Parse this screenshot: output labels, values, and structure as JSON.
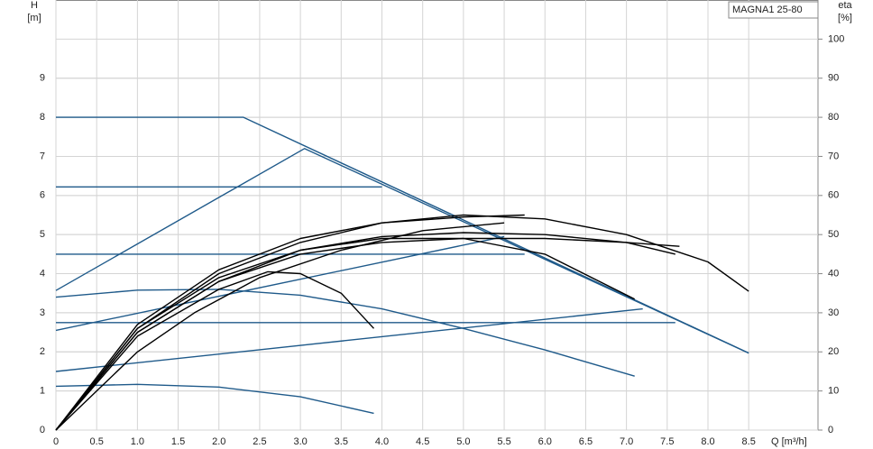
{
  "chart_data": {
    "type": "line",
    "legend_box": "MAGNA1 25-80",
    "y_label": "H",
    "y_unit": "[m]",
    "y2_label": "eta",
    "y2_unit": "[%]",
    "x_label": "Q [m³/h]",
    "xlim": [
      0,
      9.35
    ],
    "ylim": [
      0,
      11
    ],
    "y2lim": [
      0,
      110
    ],
    "grid": true,
    "xticks": [
      0,
      0.5,
      {
        "value": 1,
        "label": "1.0"
      },
      1.5,
      {
        "value": 2,
        "label": "2.0"
      },
      2.5,
      {
        "value": 3,
        "label": "3.0"
      },
      3.5,
      {
        "value": 4,
        "label": "4.0"
      },
      4.5,
      {
        "value": 5,
        "label": "5.0"
      },
      5.5,
      {
        "value": 6,
        "label": "6.0"
      },
      6.5,
      {
        "value": 7,
        "label": "7.0"
      },
      7.5,
      {
        "value": 8,
        "label": "8.0"
      },
      8.5
    ],
    "yticks": [
      0,
      1,
      2,
      3,
      4,
      5,
      6,
      7,
      8,
      9
    ],
    "y2ticks": [
      0,
      10,
      20,
      30,
      40,
      50,
      60,
      70,
      80,
      90,
      100
    ],
    "series": [
      {
        "color": "#1f5a8a",
        "x": [
          0,
          2.3,
          8.5
        ],
        "values": [
          8,
          8,
          1.97
        ]
      },
      {
        "color": "#1f5a8a",
        "x": [
          0,
          3.05,
          8.5
        ],
        "values": [
          3.57,
          7.2,
          1.97
        ]
      },
      {
        "color": "#1f5a8a",
        "x": [
          0,
          4.0
        ],
        "values": [
          6.22,
          6.22
        ]
      },
      {
        "color": "#1f5a8a",
        "x": [
          0,
          5.75
        ],
        "values": [
          4.5,
          4.5
        ]
      },
      {
        "color": "#1f5a8a",
        "x": [
          0,
          7.6
        ],
        "values": [
          2.75,
          2.75
        ]
      },
      {
        "color": "#1f5a8a",
        "x": [
          0,
          5.5
        ],
        "values": [
          2.55,
          4.95
        ]
      },
      {
        "color": "#1f5a8a",
        "x": [
          0,
          7.2
        ],
        "values": [
          1.5,
          3.1
        ]
      },
      {
        "color": "#1f5a8a",
        "x": [
          0,
          1,
          2,
          3,
          4,
          5,
          6,
          7.1
        ],
        "values": [
          3.4,
          3.58,
          3.6,
          3.45,
          3.1,
          2.6,
          2.05,
          1.38
        ]
      },
      {
        "color": "#1f5a8a",
        "x": [
          0,
          1,
          2,
          3,
          3.9
        ],
        "values": [
          1.12,
          1.17,
          1.1,
          0.85,
          0.43
        ]
      },
      {
        "color": "#000000",
        "axis": "y2",
        "x": [
          0,
          1,
          2,
          3,
          4,
          5,
          6,
          7,
          8,
          8.5
        ],
        "values": [
          0,
          26,
          40,
          48,
          53,
          55,
          54,
          50,
          43,
          35.5
        ]
      },
      {
        "color": "#000000",
        "axis": "y2",
        "x": [
          0,
          1,
          2,
          3,
          4,
          5,
          5.75
        ],
        "values": [
          0,
          27,
          41,
          49,
          53,
          54.5,
          55
        ]
      },
      {
        "color": "#000000",
        "axis": "y2",
        "x": [
          0,
          1,
          2,
          3,
          4,
          5,
          6,
          7,
          7.6
        ],
        "values": [
          0,
          25,
          38,
          46,
          49.5,
          50.5,
          50,
          48,
          45
        ]
      },
      {
        "color": "#000000",
        "axis": "y2",
        "x": [
          0,
          1,
          2,
          3,
          4,
          5,
          6,
          7,
          7.65
        ],
        "values": [
          0,
          25,
          38,
          45,
          48,
          49,
          49,
          48,
          47
        ]
      },
      {
        "color": "#000000",
        "axis": "y2",
        "x": [
          0,
          1,
          2,
          2.6,
          3,
          3.5,
          3.9
        ],
        "values": [
          0,
          24,
          36,
          40.5,
          40,
          35,
          26
        ]
      },
      {
        "color": "#000000",
        "axis": "y2",
        "x": [
          0,
          1,
          2,
          3,
          4,
          5,
          6,
          7.1
        ],
        "values": [
          0,
          26,
          39,
          46,
          49,
          49,
          45,
          33.5
        ]
      },
      {
        "color": "#000000",
        "axis": "y2",
        "x": [
          0,
          0.5,
          1,
          1.7,
          2.5,
          3.5,
          4.5,
          5.5
        ],
        "values": [
          0,
          10,
          20,
          30,
          39,
          46,
          51,
          53
        ]
      }
    ]
  }
}
